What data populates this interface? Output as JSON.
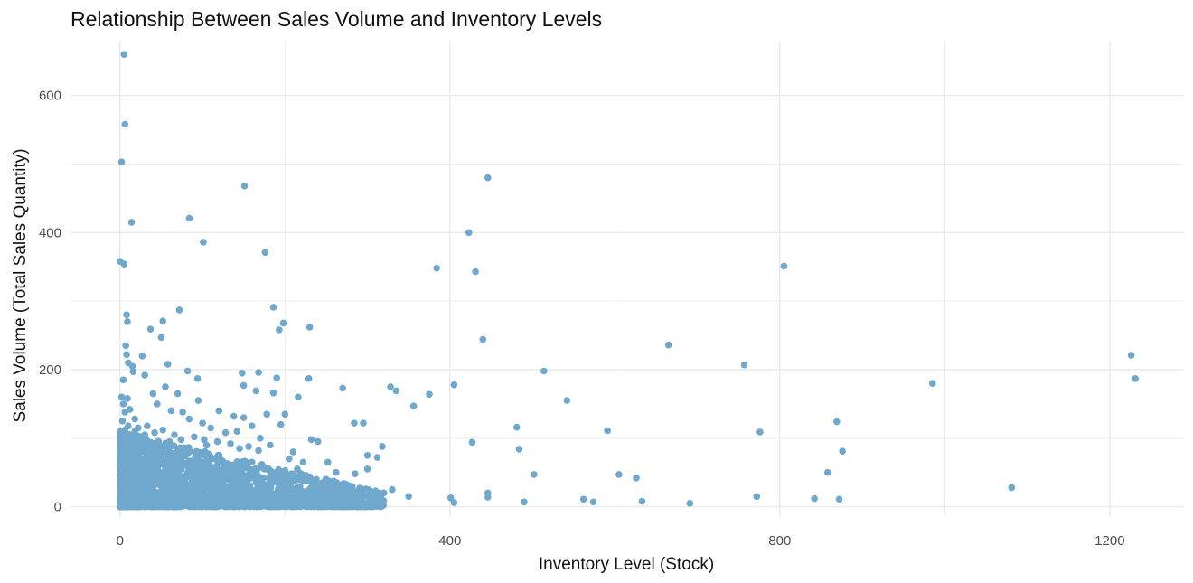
{
  "chart_data": {
    "type": "scatter",
    "title": "Relationship Between Sales Volume and Inventory Levels",
    "xlabel": "Inventory Level (Stock)",
    "ylabel": "Sales Volume (Total Sales Quantity)",
    "xlim": [
      -60,
      1290
    ],
    "ylim": [
      -15,
      680
    ],
    "x_ticks": [
      0,
      400,
      800,
      1200
    ],
    "y_ticks": [
      0,
      200,
      400,
      600
    ],
    "x_tick_labels": [
      "0",
      "400",
      "800",
      "1200"
    ],
    "y_tick_labels": [
      "0",
      "200",
      "400",
      "600"
    ],
    "grid": true,
    "point_color": "#6fa8cc",
    "grid_color": "#ebebeb",
    "points": [
      {
        "x": 5,
        "y": 660
      },
      {
        "x": 6,
        "y": 558
      },
      {
        "x": 2,
        "y": 503
      },
      {
        "x": 14,
        "y": 415
      },
      {
        "x": 0,
        "y": 358
      },
      {
        "x": 5,
        "y": 354
      },
      {
        "x": 151,
        "y": 468
      },
      {
        "x": 84,
        "y": 421
      },
      {
        "x": 101,
        "y": 386
      },
      {
        "x": 176,
        "y": 371
      },
      {
        "x": 8,
        "y": 280
      },
      {
        "x": 9,
        "y": 270
      },
      {
        "x": 72,
        "y": 287
      },
      {
        "x": 52,
        "y": 271
      },
      {
        "x": 37,
        "y": 259
      },
      {
        "x": 50,
        "y": 247
      },
      {
        "x": 186,
        "y": 291
      },
      {
        "x": 198,
        "y": 268
      },
      {
        "x": 193,
        "y": 258
      },
      {
        "x": 230,
        "y": 262
      },
      {
        "x": 7,
        "y": 235
      },
      {
        "x": 8,
        "y": 222
      },
      {
        "x": 10,
        "y": 210
      },
      {
        "x": 15,
        "y": 205
      },
      {
        "x": 16,
        "y": 197
      },
      {
        "x": 27,
        "y": 220
      },
      {
        "x": 30,
        "y": 192
      },
      {
        "x": 4,
        "y": 185
      },
      {
        "x": 58,
        "y": 208
      },
      {
        "x": 82,
        "y": 198
      },
      {
        "x": 94,
        "y": 187
      },
      {
        "x": 148,
        "y": 195
      },
      {
        "x": 168,
        "y": 196
      },
      {
        "x": 190,
        "y": 188
      },
      {
        "x": 229,
        "y": 187
      },
      {
        "x": 150,
        "y": 177
      },
      {
        "x": 165,
        "y": 169
      },
      {
        "x": 186,
        "y": 166
      },
      {
        "x": 216,
        "y": 160
      },
      {
        "x": 270,
        "y": 173
      },
      {
        "x": 328,
        "y": 175
      },
      {
        "x": 335,
        "y": 169
      },
      {
        "x": 375,
        "y": 164
      },
      {
        "x": 356,
        "y": 147
      },
      {
        "x": 384,
        "y": 348
      },
      {
        "x": 423,
        "y": 400
      },
      {
        "x": 431,
        "y": 343
      },
      {
        "x": 446,
        "y": 480
      },
      {
        "x": 440,
        "y": 244
      },
      {
        "x": 405,
        "y": 178
      },
      {
        "x": 514,
        "y": 198
      },
      {
        "x": 542,
        "y": 155
      },
      {
        "x": 591,
        "y": 111
      },
      {
        "x": 427,
        "y": 94
      },
      {
        "x": 481,
        "y": 116
      },
      {
        "x": 484,
        "y": 84
      },
      {
        "x": 502,
        "y": 47
      },
      {
        "x": 605,
        "y": 47
      },
      {
        "x": 626,
        "y": 42
      },
      {
        "x": 446,
        "y": 20
      },
      {
        "x": 446,
        "y": 14
      },
      {
        "x": 401,
        "y": 13
      },
      {
        "x": 405,
        "y": 6
      },
      {
        "x": 490,
        "y": 7
      },
      {
        "x": 562,
        "y": 11
      },
      {
        "x": 574,
        "y": 7
      },
      {
        "x": 633,
        "y": 8
      },
      {
        "x": 665,
        "y": 236
      },
      {
        "x": 691,
        "y": 5
      },
      {
        "x": 757,
        "y": 207
      },
      {
        "x": 776,
        "y": 109
      },
      {
        "x": 772,
        "y": 15
      },
      {
        "x": 805,
        "y": 351
      },
      {
        "x": 869,
        "y": 124
      },
      {
        "x": 858,
        "y": 50
      },
      {
        "x": 876,
        "y": 81
      },
      {
        "x": 842,
        "y": 12
      },
      {
        "x": 872,
        "y": 11
      },
      {
        "x": 985,
        "y": 180
      },
      {
        "x": 1081,
        "y": 28
      },
      {
        "x": 1226,
        "y": 221
      },
      {
        "x": 1231,
        "y": 187
      },
      {
        "x": 2,
        "y": 160
      },
      {
        "x": 4,
        "y": 150
      },
      {
        "x": 9,
        "y": 158
      },
      {
        "x": 12,
        "y": 142
      },
      {
        "x": 6,
        "y": 138
      },
      {
        "x": 18,
        "y": 128
      },
      {
        "x": 3,
        "y": 125
      },
      {
        "x": 10,
        "y": 118
      },
      {
        "x": 22,
        "y": 115
      },
      {
        "x": 30,
        "y": 105
      },
      {
        "x": 40,
        "y": 165
      },
      {
        "x": 45,
        "y": 150
      },
      {
        "x": 55,
        "y": 175
      },
      {
        "x": 62,
        "y": 140
      },
      {
        "x": 70,
        "y": 165
      },
      {
        "x": 76,
        "y": 138
      },
      {
        "x": 84,
        "y": 128
      },
      {
        "x": 95,
        "y": 155
      },
      {
        "x": 100,
        "y": 122
      },
      {
        "x": 110,
        "y": 115
      },
      {
        "x": 120,
        "y": 140
      },
      {
        "x": 128,
        "y": 108
      },
      {
        "x": 138,
        "y": 132
      },
      {
        "x": 150,
        "y": 130
      },
      {
        "x": 160,
        "y": 118
      },
      {
        "x": 170,
        "y": 100
      },
      {
        "x": 178,
        "y": 135
      },
      {
        "x": 195,
        "y": 120
      },
      {
        "x": 200,
        "y": 135
      },
      {
        "x": 210,
        "y": 80
      },
      {
        "x": 222,
        "y": 65
      },
      {
        "x": 232,
        "y": 98
      },
      {
        "x": 240,
        "y": 95
      },
      {
        "x": 250,
        "y": 40
      },
      {
        "x": 262,
        "y": 50
      },
      {
        "x": 284,
        "y": 122
      },
      {
        "x": 295,
        "y": 122
      },
      {
        "x": 300,
        "y": 75
      },
      {
        "x": 318,
        "y": 88
      },
      {
        "x": 312,
        "y": 72
      },
      {
        "x": 285,
        "y": 48
      },
      {
        "x": 300,
        "y": 55
      },
      {
        "x": 330,
        "y": 25
      },
      {
        "x": 315,
        "y": 15
      },
      {
        "x": 305,
        "y": 5
      },
      {
        "x": 350,
        "y": 15
      },
      {
        "x": 275,
        "y": 10
      },
      {
        "x": 260,
        "y": 20
      },
      {
        "x": 245,
        "y": 14
      },
      {
        "x": 230,
        "y": 8
      },
      {
        "x": 268,
        "y": 2
      },
      {
        "x": 1,
        "y": 95
      },
      {
        "x": 2,
        "y": 80
      },
      {
        "x": 3,
        "y": 60
      },
      {
        "x": 1,
        "y": 45
      },
      {
        "x": 2,
        "y": 30
      },
      {
        "x": 4,
        "y": 15
      },
      {
        "x": 1,
        "y": 5
      },
      {
        "x": 7,
        "y": 100
      },
      {
        "x": 8,
        "y": 70
      },
      {
        "x": 10,
        "y": 50
      },
      {
        "x": 12,
        "y": 35
      },
      {
        "x": 14,
        "y": 20
      },
      {
        "x": 16,
        "y": 8
      },
      {
        "x": 20,
        "y": 90
      },
      {
        "x": 22,
        "y": 65
      },
      {
        "x": 25,
        "y": 45
      },
      {
        "x": 28,
        "y": 30
      },
      {
        "x": 30,
        "y": 12
      },
      {
        "x": 35,
        "y": 85
      },
      {
        "x": 38,
        "y": 55
      },
      {
        "x": 40,
        "y": 25
      },
      {
        "x": 44,
        "y": 10
      },
      {
        "x": 48,
        "y": 75
      },
      {
        "x": 50,
        "y": 40
      },
      {
        "x": 55,
        "y": 18
      },
      {
        "x": 58,
        "y": 5
      },
      {
        "x": 60,
        "y": 95
      },
      {
        "x": 65,
        "y": 60
      },
      {
        "x": 68,
        "y": 30
      },
      {
        "x": 72,
        "y": 12
      },
      {
        "x": 78,
        "y": 80
      },
      {
        "x": 80,
        "y": 45
      },
      {
        "x": 85,
        "y": 20
      },
      {
        "x": 88,
        "y": 6
      },
      {
        "x": 92,
        "y": 70
      },
      {
        "x": 96,
        "y": 35
      },
      {
        "x": 100,
        "y": 15
      },
      {
        "x": 105,
        "y": 90
      },
      {
        "x": 108,
        "y": 55
      },
      {
        "x": 112,
        "y": 25
      },
      {
        "x": 115,
        "y": 8
      },
      {
        "x": 120,
        "y": 75
      },
      {
        "x": 124,
        "y": 40
      },
      {
        "x": 128,
        "y": 18
      },
      {
        "x": 132,
        "y": 60
      },
      {
        "x": 136,
        "y": 30
      },
      {
        "x": 140,
        "y": 10
      },
      {
        "x": 145,
        "y": 85
      },
      {
        "x": 148,
        "y": 50
      },
      {
        "x": 152,
        "y": 22
      },
      {
        "x": 156,
        "y": 5
      },
      {
        "x": 160,
        "y": 65
      },
      {
        "x": 165,
        "y": 35
      },
      {
        "x": 170,
        "y": 15
      },
      {
        "x": 175,
        "y": 55
      },
      {
        "x": 180,
        "y": 25
      },
      {
        "x": 185,
        "y": 8
      },
      {
        "x": 190,
        "y": 45
      },
      {
        "x": 195,
        "y": 18
      },
      {
        "x": 200,
        "y": 6
      },
      {
        "x": 205,
        "y": 30
      },
      {
        "x": 212,
        "y": 12
      },
      {
        "x": 218,
        "y": 40
      },
      {
        "x": 225,
        "y": 22
      },
      {
        "x": 235,
        "y": 35
      },
      {
        "x": 242,
        "y": 15
      },
      {
        "x": 255,
        "y": 28
      },
      {
        "x": 278,
        "y": 30
      },
      {
        "x": 290,
        "y": 18
      },
      {
        "x": 6,
        "y": 112
      },
      {
        "x": 18,
        "y": 110
      },
      {
        "x": 26,
        "y": 102
      },
      {
        "x": 33,
        "y": 118
      },
      {
        "x": 42,
        "y": 108
      },
      {
        "x": 52,
        "y": 112
      },
      {
        "x": 66,
        "y": 105
      },
      {
        "x": 74,
        "y": 98
      },
      {
        "x": 90,
        "y": 102
      },
      {
        "x": 102,
        "y": 98
      },
      {
        "x": 118,
        "y": 95
      },
      {
        "x": 134,
        "y": 92
      },
      {
        "x": 142,
        "y": 110
      },
      {
        "x": 156,
        "y": 88
      },
      {
        "x": 168,
        "y": 82
      },
      {
        "x": 182,
        "y": 90
      },
      {
        "x": 205,
        "y": 70
      },
      {
        "x": 215,
        "y": 55
      },
      {
        "x": 252,
        "y": 65
      }
    ]
  }
}
